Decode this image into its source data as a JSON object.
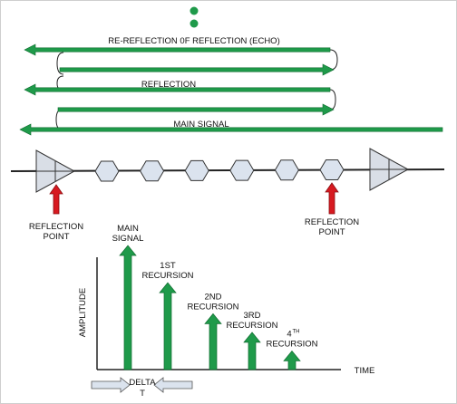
{
  "colors": {
    "arrow_green": "#1f9a4a",
    "arrow_edge": "#0d6b2e",
    "reflection_marker": "#d71920",
    "hex_fill": "#dbe3ee",
    "triangle_fill": "#d9dee6",
    "outline": "#222222"
  },
  "top": {
    "dots": 2,
    "arrows": [
      {
        "label": "RE-REFLECTION 0F REFLECTION (ECHO)",
        "direction": "left"
      },
      {
        "label": "",
        "direction": "right"
      },
      {
        "label": "REFLECTION",
        "direction": "left"
      },
      {
        "label": "",
        "direction": "right"
      },
      {
        "label": "MAIN SIGNAL",
        "direction": "left"
      }
    ]
  },
  "line": {
    "end_elements": [
      "triangle-left-end",
      "triangle-right-end"
    ],
    "hex_nodes": 6,
    "reflection_points": [
      {
        "label_line1": "REFLECTION",
        "label_line2": "POINT"
      },
      {
        "label_line1": "REFLECTION",
        "label_line2": "POINT"
      }
    ]
  },
  "plot": {
    "y_axis_label": "AMPLITUDE",
    "x_axis_label": "TIME",
    "delta_label_line1": "DELTA",
    "delta_label_line2": "T",
    "bars": [
      {
        "line1": "MAIN",
        "line2": "SIGNAL",
        "sup": "",
        "amplitude": 1.0
      },
      {
        "line1": "1ST",
        "line2": "RECURSION",
        "sup": "",
        "amplitude": 0.7
      },
      {
        "line1": "2ND",
        "line2": "RECURSION",
        "sup": "",
        "amplitude": 0.45
      },
      {
        "line1": "3RD",
        "line2": "RECURSION",
        "sup": "",
        "amplitude": 0.3
      },
      {
        "line1": "4",
        "line2": "RECURSION",
        "sup": "TH",
        "amplitude": 0.15
      }
    ]
  }
}
